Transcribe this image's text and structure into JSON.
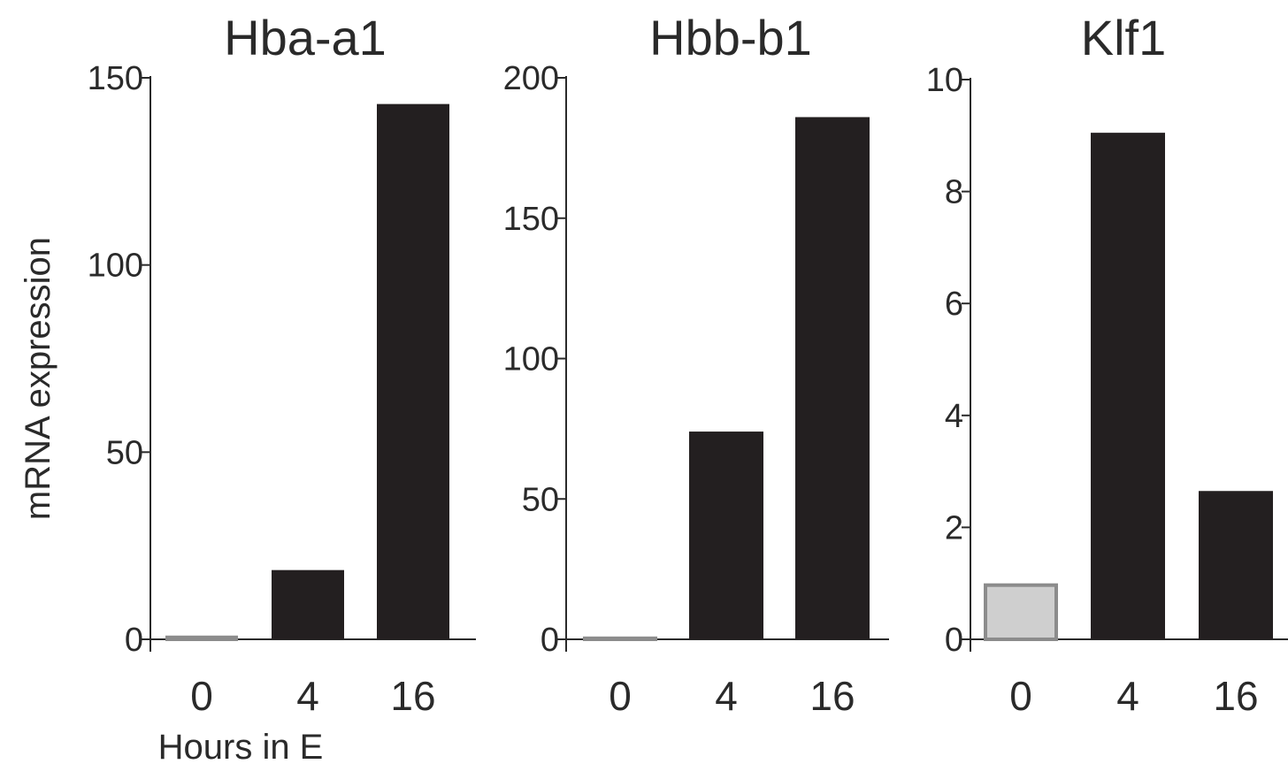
{
  "chart_data": [
    {
      "type": "bar",
      "title": "Hba-a1",
      "categories": [
        "0",
        "4",
        "16"
      ],
      "values": [
        1,
        18.5,
        143
      ],
      "ylim": [
        0,
        150
      ],
      "yticks": [
        "0",
        "50",
        "100",
        "150"
      ],
      "ylabel": "mRNA expression",
      "xlabel": "Hours in E",
      "bar_styles": [
        "control",
        "treated",
        "treated"
      ]
    },
    {
      "type": "bar",
      "title": "Hbb-b1",
      "categories": [
        "0",
        "4",
        "16"
      ],
      "values": [
        1,
        74,
        186
      ],
      "ylim": [
        0,
        200
      ],
      "yticks": [
        "0",
        "50",
        "100",
        "150",
        "200"
      ],
      "ylabel": "",
      "xlabel": "",
      "bar_styles": [
        "control",
        "treated",
        "treated"
      ]
    },
    {
      "type": "bar",
      "title": "Klf1",
      "categories": [
        "0",
        "4",
        "16"
      ],
      "values": [
        1,
        9.05,
        2.65
      ],
      "ylim": [
        0,
        10
      ],
      "yticks": [
        "0",
        "2",
        "4",
        "6",
        "8",
        "10"
      ],
      "ylabel": "",
      "xlabel": "",
      "bar_styles": [
        "control",
        "treated",
        "treated"
      ]
    }
  ],
  "colors": {
    "treated_fill": "#231f20",
    "control_fill": "#cfcfcf",
    "control_stroke": "#8c8c8c",
    "axis": "#2a2a2a"
  }
}
